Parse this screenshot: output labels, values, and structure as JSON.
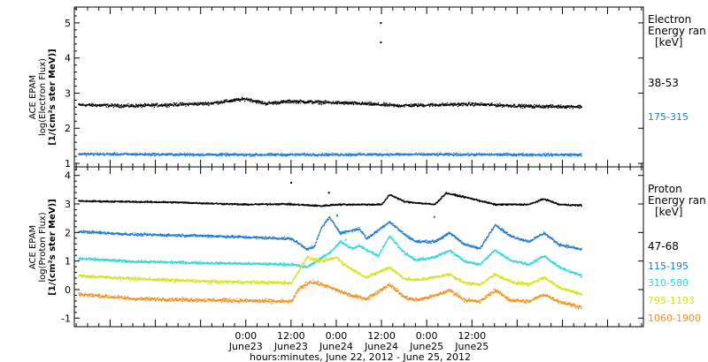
{
  "chart_data": [
    {
      "type": "scatter",
      "ylabel": [
        "ACE EPAM",
        "log(Electron Flux)",
        "[1/(cm²s ster MeV)]"
      ],
      "ylim": [
        0.9,
        5.45
      ],
      "yticks": [
        1,
        2,
        3,
        4,
        5
      ],
      "legend": {
        "title": [
          "Electron",
          "Energy ran",
          "[keV]"
        ],
        "entries": [
          {
            "label": "38-53",
            "color": "#000000"
          },
          {
            "label": "175-315",
            "color": "#1e78d2"
          }
        ]
      },
      "series": [
        {
          "color": "#000000",
          "baseline": 2.68,
          "noise": 0.05,
          "points": [
            [
              -44,
              2.68
            ],
            [
              -30,
              2.65
            ],
            [
              -10,
              2.72
            ],
            [
              0,
              2.85
            ],
            [
              5,
              2.72
            ],
            [
              12,
              2.78
            ],
            [
              30,
              2.72
            ],
            [
              40,
              2.66
            ],
            [
              60,
              2.7
            ],
            [
              75,
              2.64
            ],
            [
              89,
              2.63
            ]
          ],
          "outliers": [
            [
              35.8,
              5.0
            ],
            [
              35.8,
              4.45
            ]
          ]
        },
        {
          "color": "#1e78d2",
          "baseline": 1.27,
          "noise": 0.04,
          "points": [
            [
              -44,
              1.28
            ],
            [
              0,
              1.26
            ],
            [
              40,
              1.27
            ],
            [
              89,
              1.26
            ]
          ],
          "outliers": []
        }
      ]
    },
    {
      "type": "scatter",
      "ylabel": [
        "ACE EPAM",
        "log(Proton Flux)",
        "[1/(cm²s ster MeV)]"
      ],
      "ylim": [
        -1.3,
        4.3
      ],
      "yticks": [
        -1,
        0,
        1,
        2,
        3,
        4
      ],
      "legend": {
        "title": [
          "Proton",
          "Energy ran",
          "[keV]"
        ],
        "entries": [
          {
            "label": "47-68",
            "color": "#000000"
          },
          {
            "label": "115-195",
            "color": "#1e78d2"
          },
          {
            "label": "310-580",
            "color": "#2ed6d6"
          },
          {
            "label": "795-1193",
            "color": "#d4e21a"
          },
          {
            "label": "1060-1900",
            "color": "#f09020"
          }
        ]
      },
      "series": [
        {
          "color": "#000000",
          "noise": 0.03,
          "points": [
            [
              -44,
              3.12
            ],
            [
              -20,
              3.08
            ],
            [
              0,
              3.0
            ],
            [
              10,
              3.02
            ],
            [
              20,
              2.95
            ],
            [
              24,
              3.0
            ],
            [
              36,
              3.0
            ],
            [
              38,
              3.35
            ],
            [
              42,
              3.1
            ],
            [
              50,
              3.0
            ],
            [
              53,
              3.4
            ],
            [
              60,
              3.2
            ],
            [
              66,
              3.0
            ],
            [
              75,
              3.0
            ],
            [
              79,
              3.2
            ],
            [
              83,
              3.0
            ],
            [
              89,
              2.97
            ]
          ],
          "outliers": [
            [
              12,
              3.75
            ],
            [
              22,
              3.4
            ]
          ]
        },
        {
          "color": "#1e78d2",
          "noise": 0.05,
          "points": [
            [
              -44,
              2.05
            ],
            [
              -30,
              1.95
            ],
            [
              -10,
              1.9
            ],
            [
              12,
              1.8
            ],
            [
              16,
              1.45
            ],
            [
              18,
              1.5
            ],
            [
              20,
              2.2
            ],
            [
              22,
              2.55
            ],
            [
              25,
              2.0
            ],
            [
              30,
              2.15
            ],
            [
              32,
              1.8
            ],
            [
              38,
              2.4
            ],
            [
              42,
              1.95
            ],
            [
              45,
              1.7
            ],
            [
              50,
              1.7
            ],
            [
              54,
              2.0
            ],
            [
              58,
              1.6
            ],
            [
              62,
              1.45
            ],
            [
              66,
              2.3
            ],
            [
              70,
              1.9
            ],
            [
              75,
              1.7
            ],
            [
              79,
              2.0
            ],
            [
              83,
              1.6
            ],
            [
              89,
              1.42
            ]
          ],
          "outliers": [
            [
              24.2,
              2.6
            ],
            [
              50,
              2.55
            ]
          ]
        },
        {
          "color": "#2ed6d6",
          "noise": 0.05,
          "points": [
            [
              -44,
              1.1
            ],
            [
              -30,
              1.0
            ],
            [
              -10,
              0.95
            ],
            [
              12,
              0.9
            ],
            [
              16,
              0.8
            ],
            [
              22,
              1.3
            ],
            [
              25,
              1.7
            ],
            [
              28,
              1.45
            ],
            [
              30,
              1.55
            ],
            [
              35,
              1.2
            ],
            [
              38,
              1.9
            ],
            [
              42,
              1.3
            ],
            [
              45,
              1.05
            ],
            [
              50,
              1.15
            ],
            [
              54,
              1.4
            ],
            [
              58,
              1.0
            ],
            [
              62,
              0.9
            ],
            [
              66,
              1.4
            ],
            [
              70,
              1.05
            ],
            [
              75,
              0.9
            ],
            [
              79,
              1.2
            ],
            [
              83,
              0.8
            ],
            [
              89,
              0.5
            ]
          ],
          "outliers": [
            [
              26.5,
              1.75
            ]
          ]
        },
        {
          "color": "#d4e21a",
          "noise": 0.06,
          "points": [
            [
              -44,
              0.5
            ],
            [
              -30,
              0.4
            ],
            [
              -10,
              0.3
            ],
            [
              12,
              0.25
            ],
            [
              16,
              1.15
            ],
            [
              20,
              1.0
            ],
            [
              24,
              1.15
            ],
            [
              26,
              0.9
            ],
            [
              29,
              0.65
            ],
            [
              32,
              0.45
            ],
            [
              38,
              0.8
            ],
            [
              42,
              0.4
            ],
            [
              45,
              0.35
            ],
            [
              50,
              0.45
            ],
            [
              54,
              0.55
            ],
            [
              58,
              0.25
            ],
            [
              62,
              0.2
            ],
            [
              66,
              0.55
            ],
            [
              70,
              0.3
            ],
            [
              75,
              0.2
            ],
            [
              79,
              0.45
            ],
            [
              83,
              0.1
            ],
            [
              89,
              -0.15
            ]
          ],
          "outliers": []
        },
        {
          "color": "#f09020",
          "noise": 0.07,
          "points": [
            [
              -44,
              -0.15
            ],
            [
              -30,
              -0.3
            ],
            [
              -10,
              -0.35
            ],
            [
              12,
              -0.4
            ],
            [
              14,
              0.05
            ],
            [
              17,
              0.3
            ],
            [
              20,
              0.2
            ],
            [
              23,
              0.05
            ],
            [
              28,
              -0.2
            ],
            [
              32,
              -0.3
            ],
            [
              38,
              0.2
            ],
            [
              42,
              -0.25
            ],
            [
              45,
              -0.35
            ],
            [
              50,
              -0.2
            ],
            [
              54,
              0.0
            ],
            [
              58,
              -0.35
            ],
            [
              62,
              -0.4
            ],
            [
              66,
              0.0
            ],
            [
              70,
              -0.35
            ],
            [
              75,
              -0.4
            ],
            [
              79,
              -0.15
            ],
            [
              83,
              -0.4
            ],
            [
              89,
              -0.6
            ]
          ],
          "outliers": []
        }
      ]
    }
  ],
  "xaxis": {
    "ticks": [
      {
        "h": 0,
        "time": "0:00",
        "date": "June23"
      },
      {
        "h": 12,
        "time": "12:00",
        "date": "June23"
      },
      {
        "h": 24,
        "time": "0:00",
        "date": "June24"
      },
      {
        "h": 36,
        "time": "12:00",
        "date": "June24"
      },
      {
        "h": 48,
        "time": "0:00",
        "date": "June25"
      },
      {
        "h": 60,
        "time": "12:00",
        "date": "June25"
      }
    ],
    "minor_step": 3,
    "range": [
      -45.5,
      105.5
    ],
    "data_end": 89,
    "label": "hours:minutes, June 22, 2012 - June 25, 2012"
  }
}
